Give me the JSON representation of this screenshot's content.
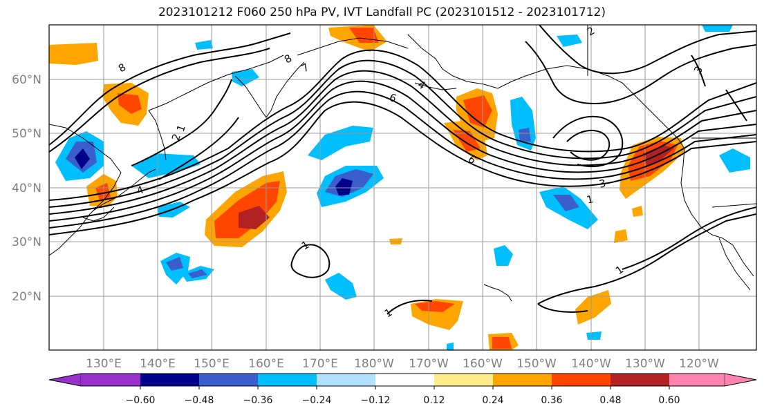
{
  "title": "2023101212 F060 250 hPa PV, IVT Landfall PC (2023101512 - 2023101712)",
  "lat_labels": [
    "60°N",
    "50°N",
    "40°N",
    "30°N",
    "20°N"
  ],
  "lon_labels": [
    "130°E",
    "140°E",
    "150°E",
    "160°E",
    "170°E",
    "180°W",
    "170°W",
    "160°W",
    "150°W",
    "140°W",
    "130°W",
    "120°W"
  ],
  "colorbar": {
    "ticks": [
      "−0.60",
      "−0.48",
      "−0.36",
      "−0.24",
      "−0.12",
      "0.12",
      "0.24",
      "0.36",
      "0.48",
      "0.60"
    ],
    "colors": [
      "#9932cc",
      "#00008b",
      "#3a5fcd",
      "#00bfff",
      "#b0e2ff",
      "#ffffff",
      "#ffec8b",
      "#ffa500",
      "#ff4500",
      "#b22222",
      "#ff83af"
    ]
  },
  "contour_labels": [
    "8",
    "7",
    "4",
    "6",
    "8",
    "2",
    "1",
    "3",
    "2",
    "1",
    "1",
    "3",
    "1",
    "1",
    "4",
    "6"
  ]
}
